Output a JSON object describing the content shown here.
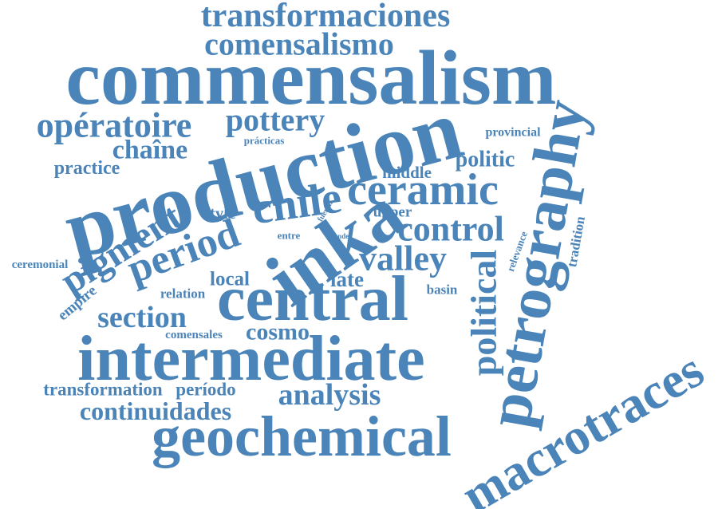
{
  "words": [
    "transformaciones",
    "comensalismo",
    "commensalism",
    "production",
    "opératoire",
    "pottery",
    "chaîne",
    "practice",
    "prácticas",
    "provincial",
    "politic",
    "middle",
    "ceramic",
    "chile",
    "period",
    "pigment",
    "style",
    "upper",
    "fueron",
    "inka",
    "entre",
    "ande",
    "control",
    "petrography",
    "political",
    "relevance",
    "tradition",
    "ceremonial",
    "valley",
    "local",
    "late",
    "empire",
    "relation",
    "basin",
    "central",
    "section",
    "comensales",
    "cosmo",
    "intermediate",
    "transformation",
    "período",
    "analysis",
    "continuidades",
    "geochemical",
    "macrotraces"
  ]
}
